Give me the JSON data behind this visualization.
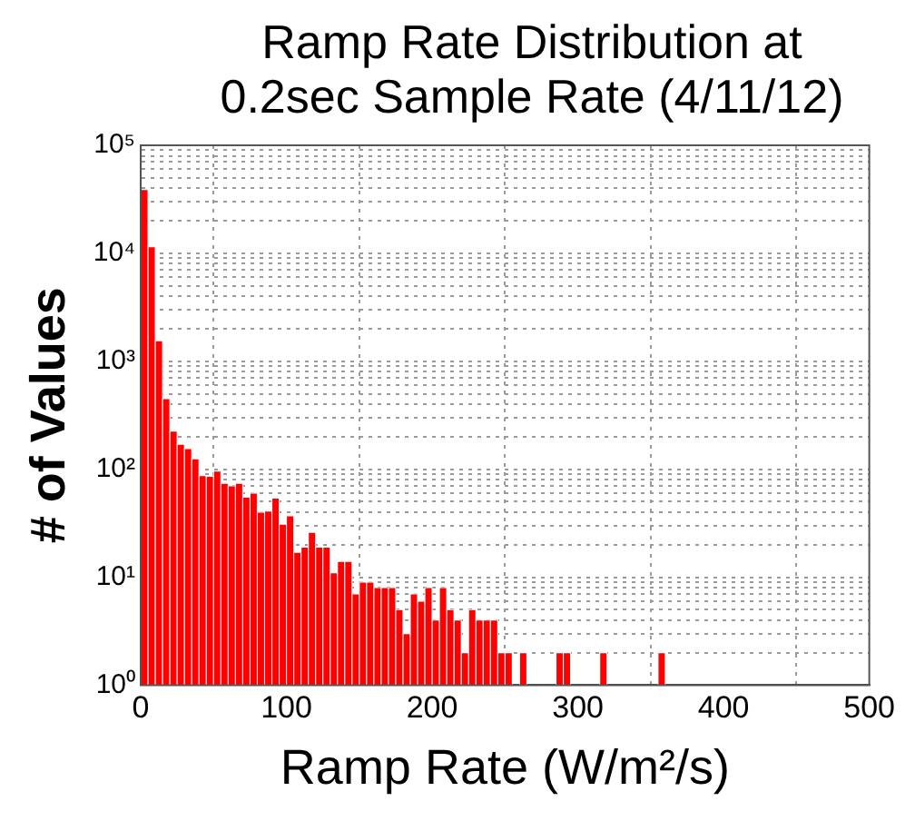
{
  "chart_data": {
    "type": "histogram",
    "title": "Ramp Rate Distribution at 0.2sec Sample Rate (4/11/12)",
    "xlabel": "Ramp Rate (W/m²/s)",
    "ylabel": "# of Values",
    "bins": [
      0,
      5,
      10,
      15,
      20,
      25,
      30,
      35,
      40,
      45,
      50,
      55,
      60,
      65,
      70,
      75,
      80,
      85,
      90,
      95,
      100,
      105,
      110,
      115,
      120,
      125,
      130,
      135,
      140,
      145,
      150,
      155,
      160,
      165,
      170,
      175,
      180,
      185,
      190,
      195,
      200,
      205,
      210,
      215,
      220,
      225,
      230,
      235,
      240,
      245,
      250,
      255,
      260,
      265,
      270,
      275,
      280,
      285,
      290,
      295,
      300,
      305,
      310,
      315,
      320,
      325,
      330,
      335,
      340,
      345,
      350,
      355,
      360
    ],
    "values": [
      39000,
      11500,
      1550,
      450,
      225,
      170,
      155,
      125,
      87,
      86,
      96,
      74,
      70,
      74,
      55,
      60,
      40,
      41,
      54,
      31,
      37,
      17,
      19,
      26,
      19,
      19,
      11,
      14,
      14,
      7,
      9,
      9,
      8,
      8,
      8,
      5,
      3,
      7,
      6,
      8,
      4,
      8,
      5,
      4,
      2,
      5,
      4,
      4,
      4,
      2,
      2,
      null,
      2,
      null,
      null,
      null,
      null,
      2,
      2,
      null,
      null,
      null,
      null,
      2,
      null,
      null,
      null,
      null,
      null,
      null,
      null,
      2
    ],
    "color": "#ff0000",
    "log": "y",
    "grid": true,
    "xlim": [
      0,
      500
    ],
    "xticks": [
      0,
      100,
      200,
      300,
      400,
      500
    ],
    "ylim": [
      1,
      100000
    ],
    "yticks": [
      {
        "value": 1,
        "label": "10⁰"
      },
      {
        "value": 2,
        "label": null
      },
      {
        "value": 3,
        "label": null
      },
      {
        "value": 4,
        "label": null
      },
      {
        "value": 5,
        "label": null
      },
      {
        "value": 6,
        "label": null
      },
      {
        "value": 7,
        "label": null
      },
      {
        "value": 8,
        "label": null
      },
      {
        "value": 9,
        "label": null
      },
      {
        "value": 10,
        "label": "10¹"
      },
      {
        "value": 20,
        "label": null
      },
      {
        "value": 30,
        "label": null
      },
      {
        "value": 40,
        "label": null
      },
      {
        "value": 50,
        "label": null
      },
      {
        "value": 60,
        "label": null
      },
      {
        "value": 70,
        "label": null
      },
      {
        "value": 80,
        "label": null
      },
      {
        "value": 90,
        "label": null
      },
      {
        "value": 100,
        "label": "10²"
      },
      {
        "value": 200,
        "label": null
      },
      {
        "value": 300,
        "label": null
      },
      {
        "value": 400,
        "label": null
      },
      {
        "value": 500,
        "label": null
      },
      {
        "value": 600,
        "label": null
      },
      {
        "value": 700,
        "label": null
      },
      {
        "value": 800,
        "label": null
      },
      {
        "value": 900,
        "label": null
      },
      {
        "value": 1000,
        "label": "10³"
      },
      {
        "value": 2000,
        "label": null
      },
      {
        "value": 3000,
        "label": null
      },
      {
        "value": 4000,
        "label": null
      },
      {
        "value": 5000,
        "label": null
      },
      {
        "value": 6000,
        "label": null
      },
      {
        "value": 7000,
        "label": null
      },
      {
        "value": 8000,
        "label": null
      },
      {
        "value": 9000,
        "label": null
      },
      {
        "value": 10000,
        "label": "10⁴"
      },
      {
        "value": 20000,
        "label": null
      },
      {
        "value": 30000,
        "label": null
      },
      {
        "value": 40000,
        "label": null
      },
      {
        "value": 50000,
        "label": null
      },
      {
        "value": 60000,
        "label": null
      },
      {
        "value": 70000,
        "label": null
      },
      {
        "value": 80000,
        "label": null
      },
      {
        "value": 90000,
        "label": null
      },
      {
        "value": 100000,
        "label": "10⁵"
      }
    ]
  }
}
